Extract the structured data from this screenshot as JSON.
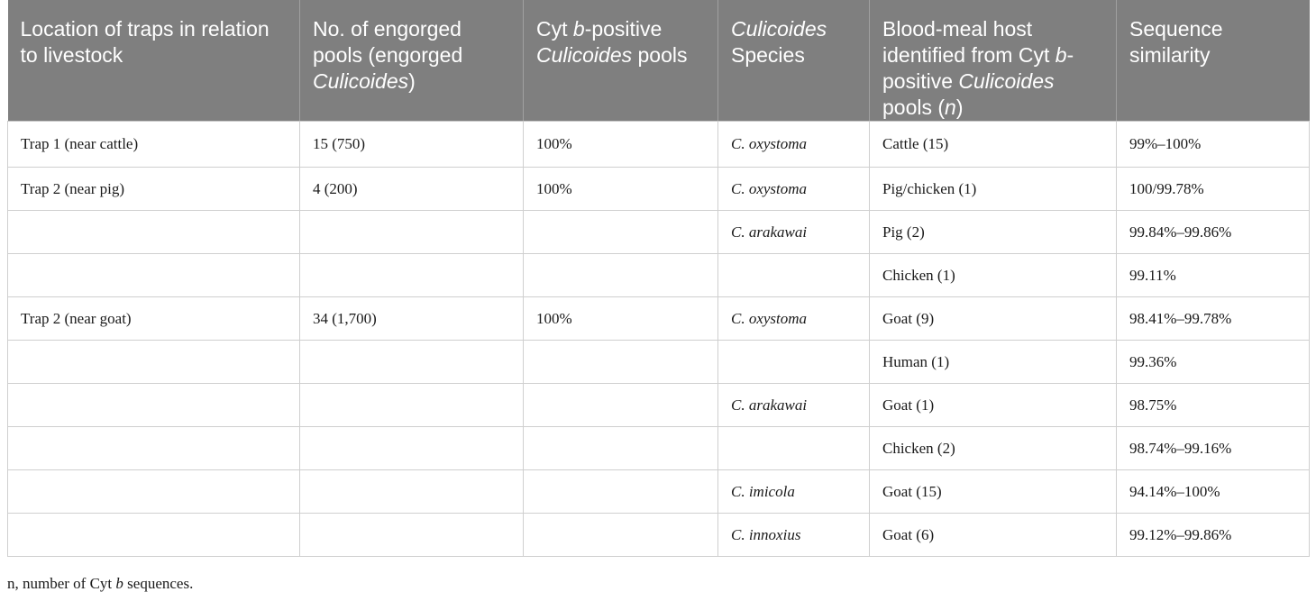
{
  "header": {
    "col1": "Location of traps in relation to livestock",
    "col2_a": "No. of engorged pools (engorged ",
    "col2_b": "Culicoides",
    "col2_c": ")",
    "col3_a": "Cyt ",
    "col3_b": "b",
    "col3_c": "-positive ",
    "col3_d": "Culicoides",
    "col3_e": " pools",
    "col4_a": "Culicoides",
    "col4_b": " Species",
    "col5_a": "Blood-meal host identified from Cyt ",
    "col5_b": "b",
    "col5_c": "-positive ",
    "col5_d": "Culicoides",
    "col5_e": " pools (",
    "col5_f": "n",
    "col5_g": ")",
    "col6": "Sequence similarity"
  },
  "rows": [
    {
      "location": "Trap 1 (near cattle)",
      "pools": "15 (750)",
      "cytb": "100%",
      "species": "C. oxystoma",
      "host": "Cattle (15)",
      "similarity": "99%–100%"
    },
    {
      "location": "Trap 2 (near pig)",
      "pools": "4 (200)",
      "cytb": "100%",
      "species": "C. oxystoma",
      "host": "Pig/chicken (1)",
      "similarity": "100/99.78%"
    },
    {
      "location": "",
      "pools": "",
      "cytb": "",
      "species": "C. arakawai",
      "host": "Pig (2)",
      "similarity": "99.84%–99.86%"
    },
    {
      "location": "",
      "pools": "",
      "cytb": "",
      "species": "",
      "host": "Chicken (1)",
      "similarity": "99.11%"
    },
    {
      "location": "Trap 2 (near goat)",
      "pools": "34 (1,700)",
      "cytb": "100%",
      "species": "C. oxystoma",
      "host": "Goat (9)",
      "similarity": "98.41%–99.78%"
    },
    {
      "location": "",
      "pools": "",
      "cytb": "",
      "species": "",
      "host": "Human (1)",
      "similarity": "99.36%"
    },
    {
      "location": "",
      "pools": "",
      "cytb": "",
      "species": "C. arakawai",
      "host": "Goat (1)",
      "similarity": "98.75%"
    },
    {
      "location": "",
      "pools": "",
      "cytb": "",
      "species": "",
      "host": "Chicken (2)",
      "similarity": "98.74%–99.16%"
    },
    {
      "location": "",
      "pools": "",
      "cytb": "",
      "species": "C. imicola",
      "host": "Goat (15)",
      "similarity": "94.14%–100%"
    },
    {
      "location": "",
      "pools": "",
      "cytb": "",
      "species": "C. innoxius",
      "host": "Goat (6)",
      "similarity": "99.12%–99.86%"
    }
  ],
  "footnote": {
    "a": "n, number of Cyt ",
    "b": "b",
    "c": " sequences."
  }
}
